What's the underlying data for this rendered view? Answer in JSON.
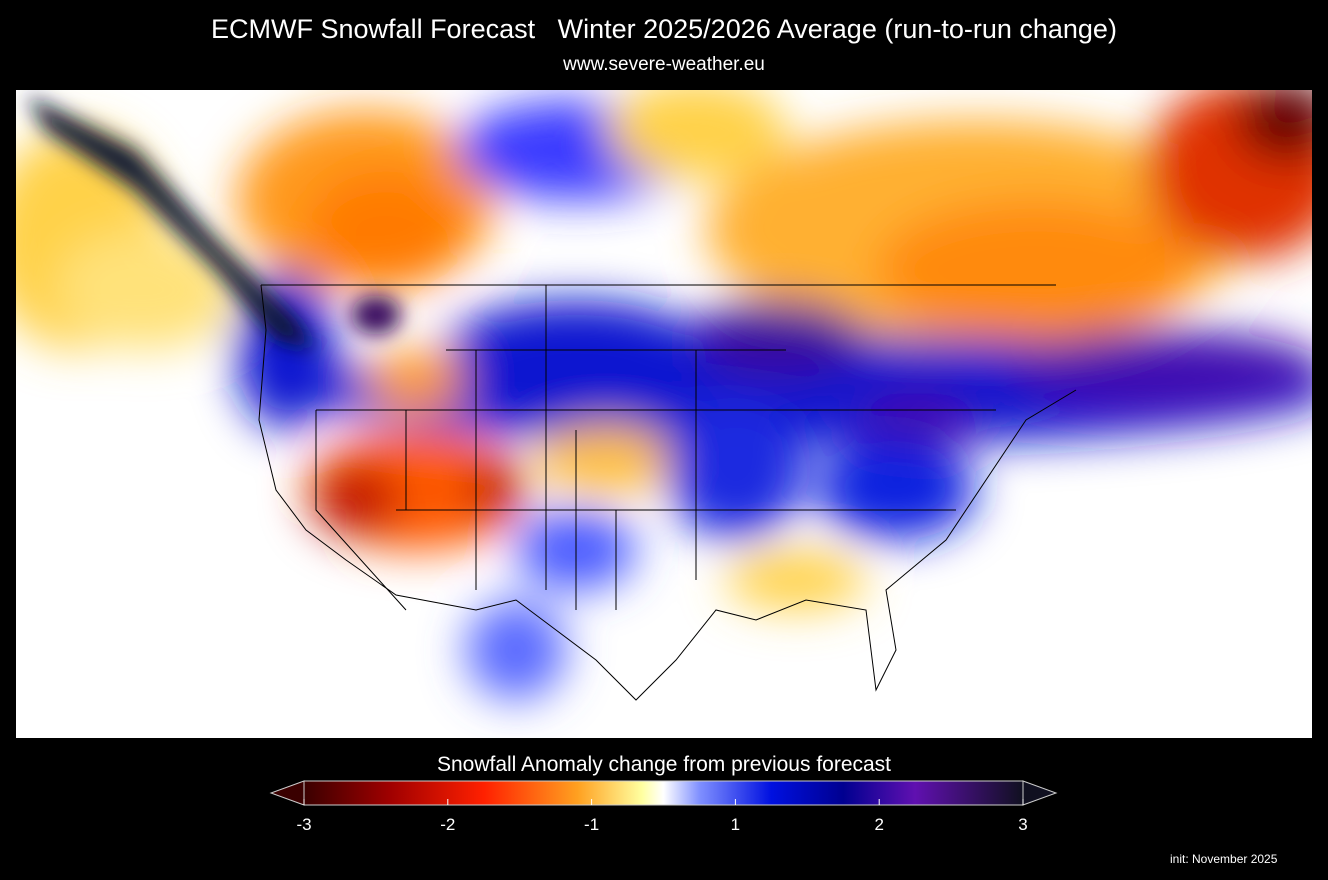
{
  "header": {
    "title": "ECMWF Snowfall Forecast   Winter 2025/2026 Average (run-to-run change)",
    "subtitle": "www.severe-weather.eu"
  },
  "colorbar": {
    "label": "Snowfall Anomaly change from previous forecast",
    "ticks": [
      -3,
      -2,
      -1,
      1,
      2,
      3
    ]
  },
  "footer": {
    "init": "init: November 2025"
  }
}
